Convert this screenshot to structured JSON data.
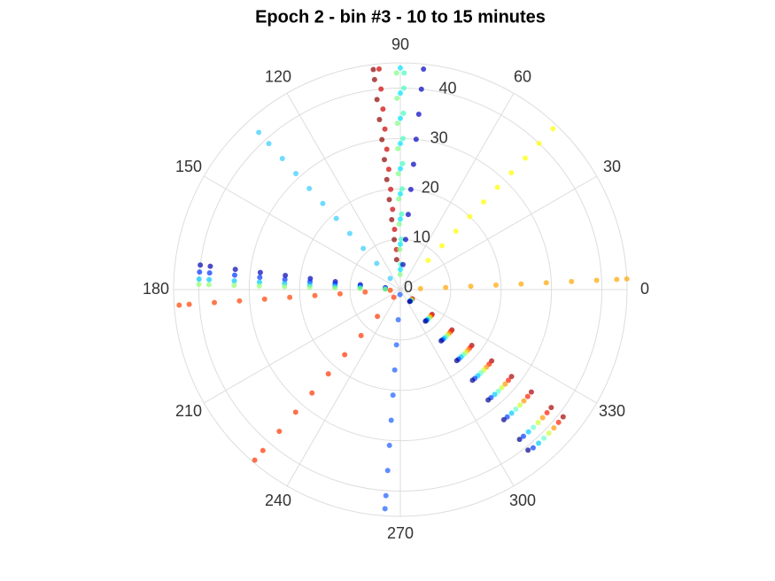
{
  "chart_data": {
    "type": "polar_scatter",
    "title": "Epoch 2 - bin #3 - 10 to 15 minutes",
    "rlim": [
      0,
      45
    ],
    "rticks": [
      0,
      10,
      20,
      30,
      40
    ],
    "thetaticks": [
      0,
      30,
      60,
      90,
      120,
      150,
      180,
      210,
      240,
      270,
      300,
      330
    ],
    "grid": true,
    "series": [
      {
        "color": "#8b0000",
        "theta": 97,
        "values": [
          6,
          10,
          14,
          18,
          22,
          26,
          30,
          34,
          38,
          42,
          44
        ]
      },
      {
        "color": "#cc0000",
        "theta": 95.5,
        "values": [
          8,
          12,
          16,
          20,
          24,
          28,
          32,
          36,
          40,
          44
        ]
      },
      {
        "color": "#80ff80",
        "theta": 91,
        "values": [
          3,
          8,
          13,
          18,
          23,
          28,
          33,
          38,
          43
        ]
      },
      {
        "color": "#00e5ff",
        "theta": 90,
        "values": [
          4,
          9,
          14,
          19,
          24,
          29,
          34,
          39,
          44
        ]
      },
      {
        "color": "#40ffc0",
        "theta": 89,
        "values": [
          5,
          10,
          15,
          20,
          25,
          30,
          35,
          40,
          43
        ]
      },
      {
        "color": "#0000c0",
        "theta": 84,
        "values": [
          5,
          10,
          15,
          20,
          25,
          30,
          35,
          40,
          44
        ]
      },
      {
        "color": "#33ccff",
        "theta": 132,
        "values": [
          3,
          7,
          11,
          15,
          19,
          23,
          27,
          31,
          35,
          39,
          42
        ]
      },
      {
        "color": "#ffff00",
        "theta": 46.5,
        "values": [
          8,
          12,
          16,
          20,
          24,
          28,
          32,
          36,
          40,
          44
        ]
      },
      {
        "color": "#ffa500",
        "theta": 2.7,
        "values": [
          4,
          9,
          14,
          19,
          24,
          29,
          34,
          39,
          43,
          45
        ]
      },
      {
        "color": "#0000b0",
        "theta": 173,
        "values": [
          3,
          8,
          13,
          18,
          23,
          28,
          33,
          38,
          40
        ]
      },
      {
        "color": "#0033ff",
        "theta": 175,
        "values": [
          3,
          8,
          13,
          18,
          23,
          28,
          33,
          38,
          40
        ]
      },
      {
        "color": "#00c8ff",
        "theta": 177,
        "values": [
          3,
          8,
          13,
          18,
          23,
          28,
          33,
          38,
          40
        ]
      },
      {
        "color": "#90ff70",
        "theta": 178.5,
        "values": [
          3,
          8,
          13,
          18,
          23,
          28,
          33,
          38,
          40
        ]
      },
      {
        "color": "#ff4000",
        "theta": 184,
        "values": [
          2,
          7,
          12,
          17,
          22,
          27,
          32,
          37,
          42,
          44
        ]
      },
      {
        "color": "#ff3300",
        "theta": 229.5,
        "values": [
          2,
          7,
          12,
          17,
          22,
          27,
          32,
          37,
          42,
          44.5
        ]
      },
      {
        "color": "#1a5cff",
        "theta": 266,
        "values": [
          1,
          6,
          11,
          16,
          21,
          26,
          31,
          36,
          41,
          43.6
        ]
      },
      {
        "color": "#aa0000",
        "theta": 322,
        "values": [
          3,
          8,
          13,
          18,
          23,
          28,
          33,
          38,
          41
        ]
      },
      {
        "color": "#ff2000",
        "theta": 320,
        "values": [
          3,
          8,
          13,
          18,
          23,
          28,
          33,
          38,
          41
        ]
      },
      {
        "color": "#ff9900",
        "theta": 318,
        "values": [
          3,
          8,
          13,
          18,
          23,
          28,
          33,
          38,
          41
        ]
      },
      {
        "color": "#ccff33",
        "theta": 316,
        "values": [
          3,
          8,
          13,
          18,
          23,
          28,
          33,
          38,
          41
        ]
      },
      {
        "color": "#66ffcc",
        "theta": 314,
        "values": [
          3,
          8,
          13,
          18,
          23,
          28,
          33,
          38,
          41
        ]
      },
      {
        "color": "#00ccff",
        "theta": 312,
        "values": [
          3,
          8,
          13,
          18,
          23,
          28,
          33,
          38,
          41
        ]
      },
      {
        "color": "#0040ff",
        "theta": 310,
        "values": [
          3,
          8,
          13,
          18,
          23,
          28,
          33,
          38,
          41
        ]
      },
      {
        "color": "#000090",
        "theta": 308.5,
        "values": [
          3,
          8,
          13,
          18,
          23,
          28,
          33,
          38,
          40.7
        ]
      }
    ]
  }
}
